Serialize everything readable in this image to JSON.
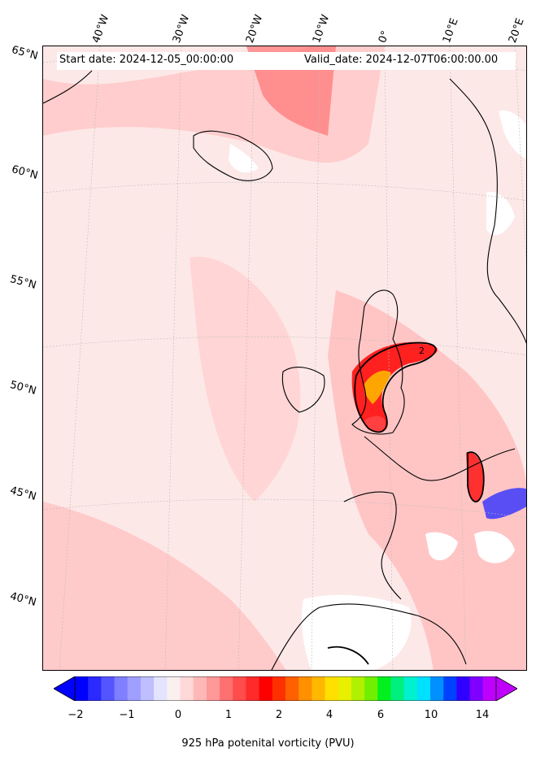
{
  "header": {
    "start_date": "Start date: 2024-12-05_00:00:00",
    "valid_date": "Valid_date: 2024-12-07T06:00:00.00"
  },
  "longitude_labels": [
    "40°W",
    "30°W",
    "20°W",
    "10°W",
    "0°",
    "10°E",
    "20°E"
  ],
  "latitude_labels": [
    "65°N",
    "60°N",
    "55°N",
    "50°N",
    "45°N",
    "40°N"
  ],
  "colorbar": {
    "label": "925 hPa potenital vorticity (PVU)",
    "ticks": [
      "−2",
      "−1",
      "0",
      "1",
      "2",
      "4",
      "6",
      "10",
      "14"
    ],
    "colors": [
      "#0000ff",
      "#2a2aff",
      "#5555ff",
      "#7f7fff",
      "#9f9fff",
      "#bfbfff",
      "#e4e4ff",
      "#fbf0f0",
      "#ffd8d8",
      "#ffb8b8",
      "#ff9898",
      "#ff7070",
      "#ff4c4c",
      "#ff2a2a",
      "#ff0000",
      "#ff3000",
      "#ff6000",
      "#ff9000",
      "#ffb800",
      "#ffe000",
      "#e8f000",
      "#b0f000",
      "#70f000",
      "#00f020",
      "#00f080",
      "#00f0d0",
      "#00e0ff",
      "#0090ff",
      "#0040ff",
      "#3000ff",
      "#8000ff",
      "#c000ff"
    ]
  },
  "colors": {
    "background_pv": "#fde8e8",
    "low_pv": "#ffb0b0",
    "high_pv": "#ff2020",
    "extreme_pv": "#ffa500",
    "negative_pv": "#3030ff"
  }
}
